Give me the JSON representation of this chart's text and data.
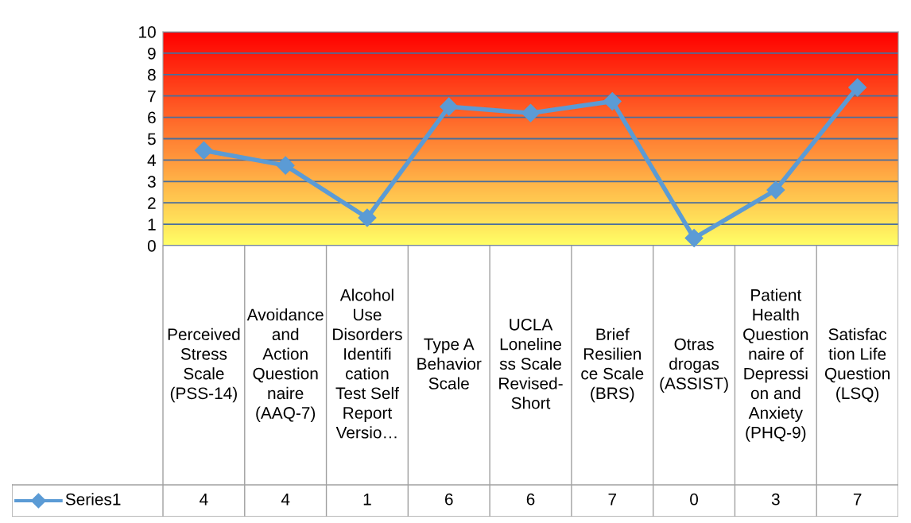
{
  "chart_data": {
    "type": "line",
    "categories": [
      "Perceived Stress Scale (PSS-14)",
      "Avoidance and Action Questionnaire (AAQ-7)",
      "Alcohol Use Disorders Identification Test Self Report Versio…",
      "Type A Behavior Scale",
      "UCLA Loneliness Scale Revised-Short",
      "Brief Resilience Scale (BRS)",
      "Otras drogas (ASSIST)",
      "Patient Health Questionnaire of Depression and Anxiety (PHQ-9)",
      "Satisfaction Life Question (LSQ)"
    ],
    "series": [
      {
        "name": "Series1",
        "color": "#5b9bd5",
        "values": [
          4.45,
          3.75,
          1.3,
          6.5,
          6.2,
          6.75,
          0.35,
          2.6,
          7.4
        ],
        "value_labels": [
          "4",
          "4",
          "1",
          "6",
          "6",
          "7",
          "0",
          "3",
          "7"
        ]
      }
    ],
    "ylim": [
      0,
      10
    ],
    "yticks": [
      0,
      1,
      2,
      3,
      4,
      5,
      6,
      7,
      8,
      9,
      10
    ],
    "grid": "y",
    "marker": "diamond",
    "line_style": "solid"
  }
}
